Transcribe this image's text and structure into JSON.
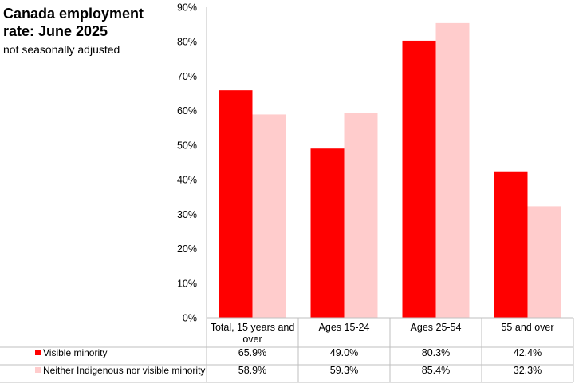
{
  "chart_data": {
    "type": "bar",
    "title": "Canada employment rate: June 2025",
    "subtitle": "not seasonally adjusted",
    "categories": [
      "Total, 15 years and over",
      "Ages 15-24",
      "Ages 25-54",
      "55 and over"
    ],
    "category_lines": [
      [
        "Total, 15 years and",
        "over"
      ],
      [
        "Ages 15-24"
      ],
      [
        "Ages 25-54"
      ],
      [
        "55 and over"
      ]
    ],
    "series": [
      {
        "name": "Visible minority",
        "color": "#ff0000",
        "values": [
          65.9,
          49.0,
          80.3,
          42.4
        ],
        "labels": [
          "65.9%",
          "49.0%",
          "80.3%",
          "42.4%"
        ]
      },
      {
        "name": "Neither Indigenous nor visible minority",
        "color": "#ffcccc",
        "values": [
          58.9,
          59.3,
          85.4,
          32.3
        ],
        "labels": [
          "58.9%",
          "59.3%",
          "85.4%",
          "32.3%"
        ]
      }
    ],
    "yticks": [
      0,
      10,
      20,
      30,
      40,
      50,
      60,
      70,
      80,
      90
    ],
    "ytick_labels": [
      "0%",
      "10%",
      "20%",
      "30%",
      "40%",
      "50%",
      "60%",
      "70%",
      "80%",
      "90%"
    ],
    "ylim": [
      0,
      90
    ],
    "grid": false,
    "legend": "data-table-bottom"
  }
}
